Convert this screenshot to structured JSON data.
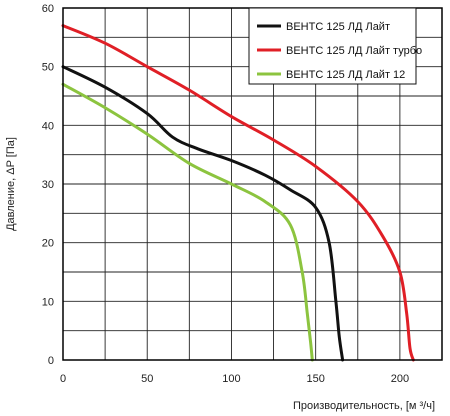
{
  "chart_data": {
    "type": "line",
    "xlabel": "Производительность, [м ³/ч]",
    "ylabel": "Давление, ΔP [Па]",
    "xlim": [
      0,
      225
    ],
    "ylim": [
      0,
      60
    ],
    "x_ticks": [
      0,
      50,
      100,
      150,
      200
    ],
    "y_ticks": [
      0,
      10,
      20,
      30,
      40,
      50,
      60
    ],
    "x_gridlines": [
      0,
      25,
      50,
      75,
      100,
      125,
      150,
      175,
      200,
      225
    ],
    "y_gridlines": [
      0,
      5,
      10,
      15,
      20,
      25,
      30,
      35,
      40,
      45,
      50,
      55,
      60
    ],
    "grid": true,
    "legend_position": "top-right",
    "series": [
      {
        "name": "ВЕНТС 125 ЛД Лайт",
        "color": "#111111",
        "points": [
          [
            0,
            50
          ],
          [
            25,
            46.5
          ],
          [
            50,
            42
          ],
          [
            65,
            38
          ],
          [
            80,
            36
          ],
          [
            100,
            34
          ],
          [
            120,
            31.5
          ],
          [
            135,
            29
          ],
          [
            150,
            26
          ],
          [
            158,
            20
          ],
          [
            162,
            10
          ],
          [
            164,
            4
          ],
          [
            166,
            0
          ]
        ]
      },
      {
        "name": "ВЕНТС 125 ЛД Лайт турбо",
        "color": "#e01f26",
        "points": [
          [
            0,
            57
          ],
          [
            25,
            54
          ],
          [
            50,
            50
          ],
          [
            75,
            46
          ],
          [
            100,
            41.5
          ],
          [
            125,
            37.5
          ],
          [
            150,
            33
          ],
          [
            175,
            27
          ],
          [
            190,
            21
          ],
          [
            200,
            15
          ],
          [
            204,
            8
          ],
          [
            206,
            2
          ],
          [
            208,
            0
          ]
        ]
      },
      {
        "name": "ВЕНТС 125 ЛД Лайт 12",
        "color": "#8cc43f",
        "points": [
          [
            0,
            47
          ],
          [
            25,
            43
          ],
          [
            50,
            38.5
          ],
          [
            75,
            33.5
          ],
          [
            100,
            30
          ],
          [
            120,
            27
          ],
          [
            135,
            23
          ],
          [
            142,
            15
          ],
          [
            145,
            8
          ],
          [
            147,
            3
          ],
          [
            148,
            0
          ]
        ]
      }
    ]
  }
}
